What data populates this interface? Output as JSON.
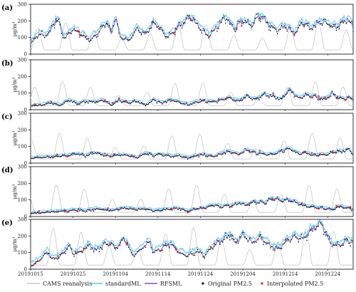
{
  "chart_data": {
    "type": "line",
    "x_tick_labels": [
      "20191015",
      "20191025",
      "20191104",
      "20191114",
      "20191124",
      "20191204",
      "20191214",
      "20191224"
    ],
    "ylabel": "μg/m³",
    "ylim": [
      0,
      300
    ],
    "yticks": [
      "0",
      "100",
      "200",
      "300"
    ],
    "legend": {
      "placement": "bottom",
      "entries": [
        {
          "name": "CAMS reanalysis",
          "color": "#c8c8c8",
          "marker": "line"
        },
        {
          "name": "standardML",
          "color": "#66c2ea",
          "marker": "line"
        },
        {
          "name": "RFSML",
          "color": "#6060b8",
          "marker": "line"
        },
        {
          "name": "Original PM2.5",
          "color": "#000000",
          "marker": "dot"
        },
        {
          "name": "Interpolated PM2.5",
          "color": "#e02020",
          "marker": "dot"
        }
      ]
    },
    "panels": [
      {
        "label": "(a)",
        "key": [
          [
            0,
            60
          ],
          [
            2,
            120
          ],
          [
            4,
            110
          ],
          [
            6,
            210
          ],
          [
            7,
            170
          ],
          [
            8,
            90
          ],
          [
            10,
            150
          ],
          [
            12,
            120
          ],
          [
            14,
            80
          ],
          [
            16,
            130
          ],
          [
            18,
            190
          ],
          [
            19,
            120
          ],
          [
            20,
            215
          ],
          [
            21,
            110
          ],
          [
            23,
            80
          ],
          [
            25,
            150
          ],
          [
            27,
            115
          ],
          [
            29,
            190
          ],
          [
            30,
            160
          ],
          [
            32,
            100
          ],
          [
            34,
            140
          ],
          [
            36,
            190
          ],
          [
            38,
            220
          ],
          [
            40,
            150
          ],
          [
            42,
            110
          ],
          [
            44,
            170
          ],
          [
            46,
            220
          ],
          [
            48,
            150
          ],
          [
            50,
            200
          ],
          [
            52,
            170
          ],
          [
            54,
            230
          ],
          [
            56,
            180
          ],
          [
            58,
            140
          ],
          [
            60,
            170
          ],
          [
            62,
            120
          ],
          [
            64,
            190
          ],
          [
            66,
            150
          ],
          [
            68,
            190
          ],
          [
            70,
            180
          ],
          [
            72,
            160
          ],
          [
            74,
            200
          ],
          [
            75,
            210
          ],
          [
            76,
            150
          ]
        ],
        "std_offset": 20,
        "cams": 190
      },
      {
        "label": "(b)",
        "key": [
          [
            0,
            20
          ],
          [
            3,
            30
          ],
          [
            5,
            40
          ],
          [
            7,
            25
          ],
          [
            9,
            60
          ],
          [
            11,
            35
          ],
          [
            13,
            50
          ],
          [
            15,
            45
          ],
          [
            17,
            55
          ],
          [
            19,
            30
          ],
          [
            21,
            55
          ],
          [
            23,
            40
          ],
          [
            25,
            50
          ],
          [
            27,
            25
          ],
          [
            29,
            60
          ],
          [
            31,
            40
          ],
          [
            33,
            60
          ],
          [
            35,
            45
          ],
          [
            37,
            30
          ],
          [
            39,
            45
          ],
          [
            41,
            50
          ],
          [
            43,
            45
          ],
          [
            45,
            60
          ],
          [
            47,
            70
          ],
          [
            49,
            55
          ],
          [
            51,
            80
          ],
          [
            53,
            60
          ],
          [
            55,
            90
          ],
          [
            57,
            80
          ],
          [
            59,
            60
          ],
          [
            61,
            120
          ],
          [
            63,
            70
          ],
          [
            65,
            90
          ],
          [
            67,
            80
          ],
          [
            69,
            60
          ],
          [
            71,
            95
          ],
          [
            73,
            65
          ],
          [
            75,
            70
          ],
          [
            76,
            60
          ]
        ],
        "std_offset": 10,
        "cams": 170
      },
      {
        "label": "(c)",
        "key": [
          [
            0,
            30
          ],
          [
            3,
            35
          ],
          [
            6,
            40
          ],
          [
            9,
            45
          ],
          [
            11,
            55
          ],
          [
            13,
            45
          ],
          [
            15,
            60
          ],
          [
            17,
            50
          ],
          [
            19,
            40
          ],
          [
            21,
            50
          ],
          [
            23,
            45
          ],
          [
            25,
            30
          ],
          [
            27,
            60
          ],
          [
            29,
            45
          ],
          [
            31,
            55
          ],
          [
            33,
            40
          ],
          [
            35,
            45
          ],
          [
            37,
            30
          ],
          [
            39,
            45
          ],
          [
            41,
            50
          ],
          [
            43,
            40
          ],
          [
            45,
            60
          ],
          [
            47,
            70
          ],
          [
            49,
            50
          ],
          [
            51,
            80
          ],
          [
            53,
            60
          ],
          [
            55,
            55
          ],
          [
            57,
            50
          ],
          [
            59,
            70
          ],
          [
            61,
            90
          ],
          [
            63,
            55
          ],
          [
            65,
            60
          ],
          [
            67,
            45
          ],
          [
            69,
            50
          ],
          [
            71,
            60
          ],
          [
            73,
            70
          ],
          [
            75,
            80
          ],
          [
            76,
            55
          ]
        ],
        "std_offset": 10,
        "cams": 180
      },
      {
        "label": "(d)",
        "key": [
          [
            0,
            20
          ],
          [
            3,
            25
          ],
          [
            6,
            30
          ],
          [
            9,
            35
          ],
          [
            11,
            40
          ],
          [
            13,
            35
          ],
          [
            15,
            45
          ],
          [
            17,
            40
          ],
          [
            19,
            35
          ],
          [
            21,
            45
          ],
          [
            23,
            50
          ],
          [
            25,
            40
          ],
          [
            27,
            45
          ],
          [
            29,
            35
          ],
          [
            31,
            40
          ],
          [
            33,
            45
          ],
          [
            35,
            50
          ],
          [
            37,
            30
          ],
          [
            39,
            45
          ],
          [
            41,
            50
          ],
          [
            43,
            70
          ],
          [
            45,
            60
          ],
          [
            47,
            65
          ],
          [
            49,
            80
          ],
          [
            51,
            70
          ],
          [
            53,
            90
          ],
          [
            55,
            80
          ],
          [
            57,
            110
          ],
          [
            59,
            95
          ],
          [
            61,
            100
          ],
          [
            63,
            80
          ],
          [
            65,
            60
          ],
          [
            67,
            55
          ],
          [
            69,
            50
          ],
          [
            71,
            40
          ],
          [
            73,
            60
          ],
          [
            75,
            50
          ],
          [
            76,
            45
          ]
        ],
        "std_offset": 10,
        "cams": 190
      },
      {
        "label": "(e)",
        "key": [
          [
            0,
            20
          ],
          [
            2,
            50
          ],
          [
            4,
            110
          ],
          [
            5,
            60
          ],
          [
            7,
            80
          ],
          [
            9,
            140
          ],
          [
            10,
            90
          ],
          [
            12,
            110
          ],
          [
            14,
            150
          ],
          [
            15,
            110
          ],
          [
            17,
            140
          ],
          [
            19,
            160
          ],
          [
            20,
            120
          ],
          [
            22,
            180
          ],
          [
            23,
            140
          ],
          [
            24,
            80
          ],
          [
            26,
            120
          ],
          [
            28,
            170
          ],
          [
            29,
            100
          ],
          [
            31,
            130
          ],
          [
            33,
            150
          ],
          [
            35,
            100
          ],
          [
            37,
            80
          ],
          [
            39,
            110
          ],
          [
            41,
            80
          ],
          [
            43,
            140
          ],
          [
            45,
            170
          ],
          [
            47,
            210
          ],
          [
            48,
            150
          ],
          [
            50,
            200
          ],
          [
            52,
            160
          ],
          [
            54,
            190
          ],
          [
            56,
            150
          ],
          [
            58,
            120
          ],
          [
            60,
            160
          ],
          [
            62,
            200
          ],
          [
            64,
            180
          ],
          [
            66,
            230
          ],
          [
            68,
            270
          ],
          [
            69,
            250
          ],
          [
            70,
            180
          ],
          [
            72,
            140
          ],
          [
            74,
            160
          ],
          [
            75,
            180
          ],
          [
            76,
            150
          ]
        ],
        "std_offset": 20,
        "cams": 250
      }
    ]
  }
}
